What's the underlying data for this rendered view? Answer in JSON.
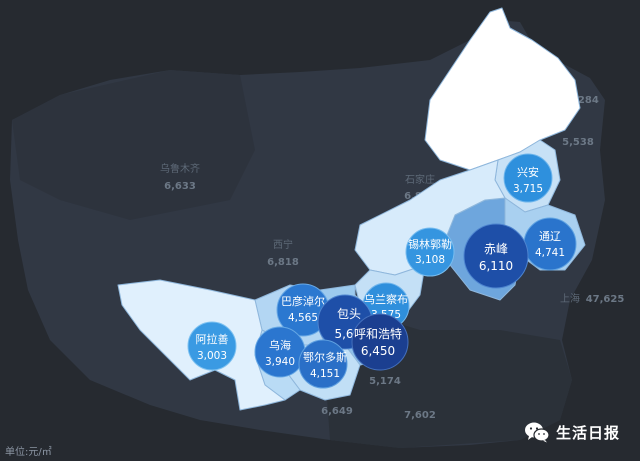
{
  "unit_label": "单位:元/㎡",
  "watermark": "生活日报",
  "colors": {
    "background": "#262a30",
    "region_light": "#d9ecfb",
    "region_mid": "#b4d7f3",
    "bubble_light": "#2f8fdc",
    "bubble_mid": "#2a6fc7",
    "bubble_dark": "#1d4ea6",
    "bubble_darker": "#1a3f8f"
  },
  "background_labels": [
    {
      "name": "乌鲁木齐",
      "value": "6,633"
    },
    {
      "name": "西宁",
      "value": "6,818"
    },
    {
      "name": "石家庄",
      "value": "6,850"
    },
    {
      "name": "",
      "value": "5,174"
    },
    {
      "name": "",
      "value": "6,649"
    },
    {
      "name": "",
      "value": "7,602"
    },
    {
      "name": "",
      "value": "5,284"
    },
    {
      "name": "",
      "value": "5,538"
    },
    {
      "name": "上海",
      "value": "47,625"
    }
  ],
  "cities": [
    {
      "name": "兴安",
      "value": "3,715"
    },
    {
      "name": "通辽",
      "value": "4,741"
    },
    {
      "name": "赤峰",
      "value": "6,110"
    },
    {
      "name": "锡林郭勒",
      "value": "3,108"
    },
    {
      "name": "乌兰察布",
      "value": "3,575"
    },
    {
      "name": "巴彦淖尔",
      "value": "4,565"
    },
    {
      "name": "包头",
      "value": "5,6"
    },
    {
      "name": "呼和浩特",
      "value": "6,450"
    },
    {
      "name": "乌海",
      "value": "3,940"
    },
    {
      "name": "鄂尔多斯",
      "value": "4,151"
    },
    {
      "name": "阿拉善",
      "value": "3,003"
    }
  ]
}
